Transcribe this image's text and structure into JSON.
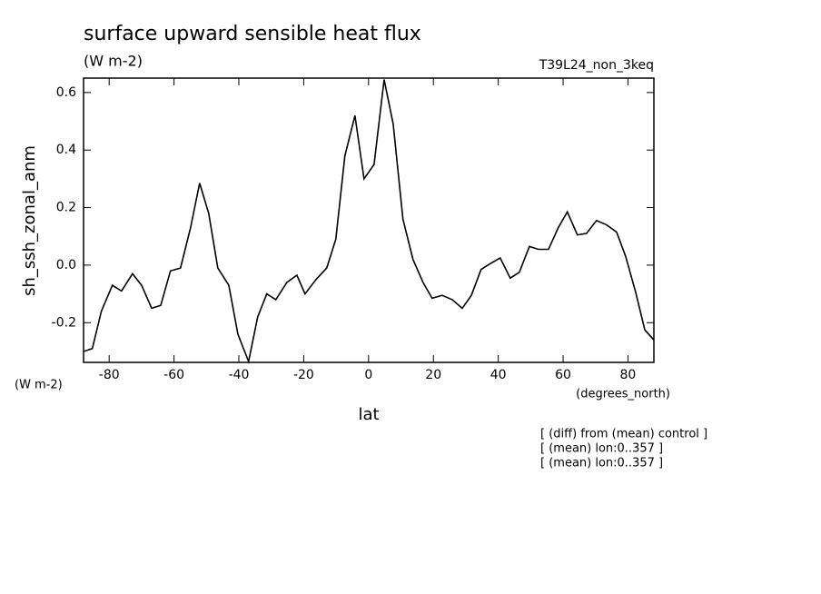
{
  "chart_data": {
    "type": "line",
    "title": "surface upward sensible heat flux",
    "subtitle": "(W m-2)",
    "dataset": "T39L24_non_3keq",
    "y_label": "sh_ssh_zonal_anm",
    "y_units": "(W m-2)",
    "x_label": "lat",
    "x_units": "(degrees_north)",
    "notes": [
      "[ (diff) from (mean) control ]",
      "[ (mean) lon:0..357 ]",
      "[ (mean) lon:0..357 ]"
    ],
    "x": [
      -87.9,
      -85.2,
      -82.4,
      -79.0,
      -76.2,
      -72.8,
      -70.0,
      -66.9,
      -64.1,
      -61.1,
      -58.0,
      -54.9,
      -52.1,
      -49.3,
      -46.5,
      -43.1,
      -40.3,
      -37.0,
      -34.2,
      -31.4,
      -28.6,
      -25.2,
      -22.1,
      -19.6,
      -16.2,
      -12.9,
      -10.1,
      -7.3,
      -4.2,
      -1.4,
      1.7,
      4.8,
      7.6,
      10.6,
      13.7,
      16.8,
      19.6,
      22.7,
      25.8,
      28.9,
      31.7,
      34.7,
      37.5,
      40.6,
      43.7,
      46.5,
      49.6,
      52.4,
      55.5,
      58.5,
      61.3,
      64.4,
      67.2,
      70.3,
      73.4,
      76.5,
      79.3,
      82.4,
      85.2,
      88.0
    ],
    "values": [
      -0.3,
      -0.29,
      -0.16,
      -0.07,
      -0.09,
      -0.03,
      -0.07,
      -0.15,
      -0.14,
      -0.02,
      -0.01,
      0.13,
      0.285,
      0.18,
      -0.01,
      -0.07,
      -0.24,
      -0.335,
      -0.18,
      -0.1,
      -0.12,
      -0.06,
      -0.035,
      -0.1,
      -0.05,
      -0.01,
      0.09,
      0.38,
      0.52,
      0.3,
      0.35,
      0.645,
      0.49,
      0.16,
      0.02,
      -0.06,
      -0.115,
      -0.105,
      -0.12,
      -0.15,
      -0.105,
      -0.015,
      0.005,
      0.025,
      -0.045,
      -0.025,
      0.065,
      0.055,
      0.055,
      0.13,
      0.185,
      0.105,
      0.11,
      0.155,
      0.14,
      0.115,
      0.03,
      -0.095,
      -0.225,
      -0.26
    ],
    "color": "#000000",
    "xlim": [
      -87.9,
      88.0
    ],
    "xticks": [
      -80,
      -60,
      -40,
      -20,
      0,
      20,
      40,
      60,
      80
    ],
    "ylim": [
      -0.338,
      0.65
    ],
    "yticks": [
      -0.2,
      {
        "value": 0,
        "label": "0.0"
      },
      0.2,
      0.4,
      0.6
    ],
    "grid": false
  }
}
